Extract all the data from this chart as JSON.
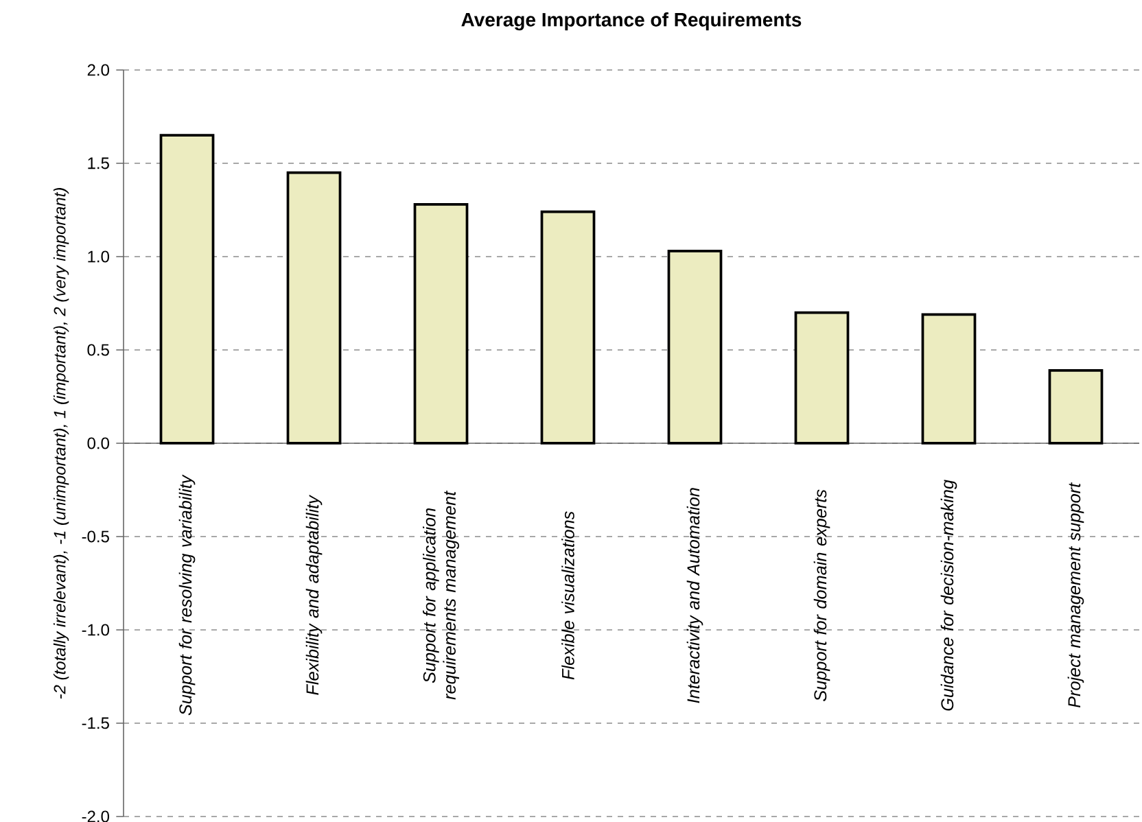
{
  "chart_data": {
    "type": "bar",
    "title": "Average Importance of Requirements",
    "ylabel": "-2 (totally irrelevant), -1 (unimportant), 1 (important), 2 (very important)",
    "categories": [
      "Support for resolving variability",
      "Flexibility and adaptability",
      "Support for application requirements management",
      "Flexible visualizations",
      "Interactivity and Automation",
      "Support for domain experts",
      "Guidance for decision-making",
      "Project management support"
    ],
    "values": [
      1.65,
      1.45,
      1.28,
      1.24,
      1.03,
      0.7,
      0.69,
      0.39
    ],
    "color": "#ececc0",
    "ylim": [
      -2,
      2
    ],
    "yticks": [
      {
        "value": -2,
        "label": "-2.0"
      },
      {
        "value": -1.5,
        "label": "-1.5"
      },
      {
        "value": -1,
        "label": "-1.0"
      },
      {
        "value": -0.5,
        "label": "-0.5"
      },
      {
        "value": 0,
        "label": "0.0"
      },
      {
        "value": 0.5,
        "label": "0.5"
      },
      {
        "value": 1,
        "label": "1.0"
      },
      {
        "value": 1.5,
        "label": "1.5"
      },
      {
        "value": 2,
        "label": "2.0"
      }
    ],
    "grid": "y"
  }
}
